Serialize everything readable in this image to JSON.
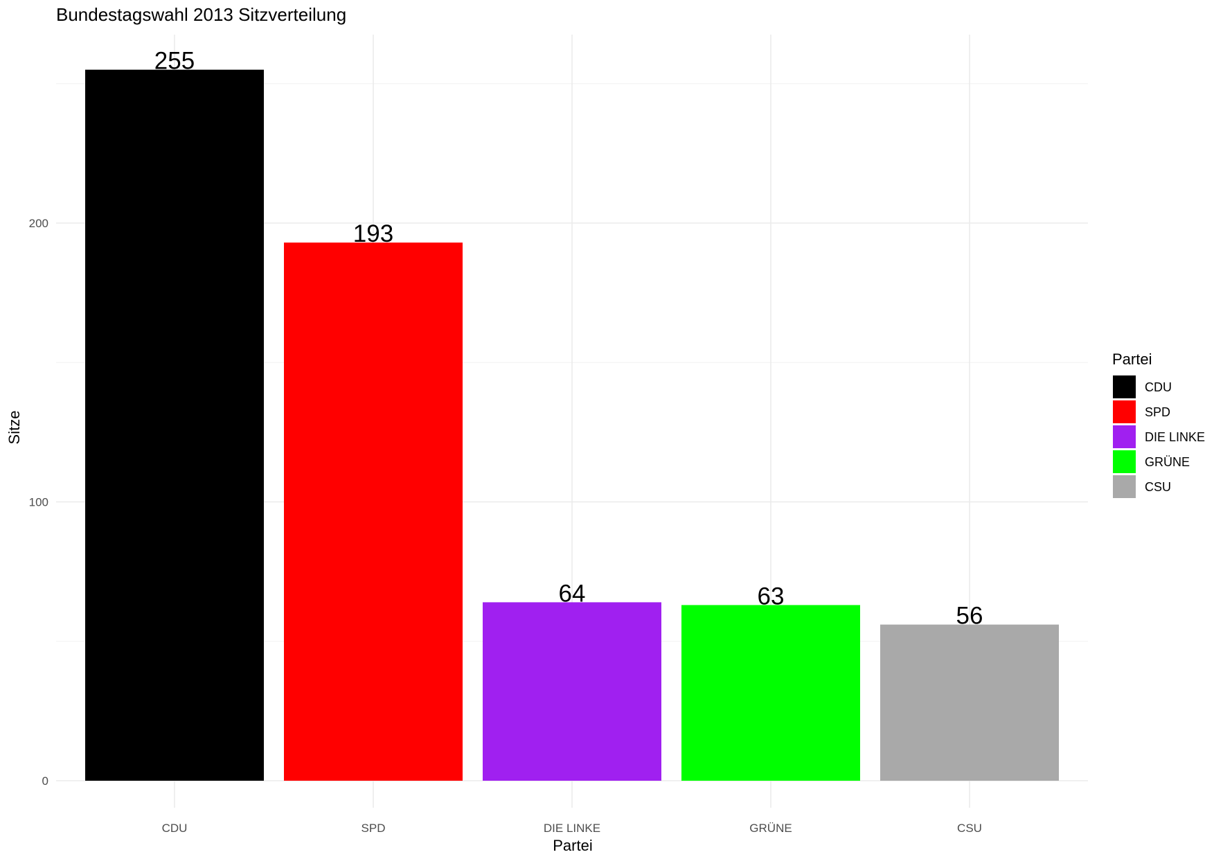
{
  "chart_data": {
    "type": "bar",
    "title": "Bundestagswahl 2013 Sitzverteilung",
    "xlabel": "Partei",
    "ylabel": "Sitze",
    "categories": [
      "CDU",
      "SPD",
      "DIE LINKE",
      "GRÜNE",
      "CSU"
    ],
    "values": [
      255,
      193,
      64,
      63,
      56
    ],
    "data_labels": [
      "255",
      "193",
      "64",
      "63",
      "56"
    ],
    "colors": [
      "#000000",
      "#ff0000",
      "#a020f0",
      "#00ff00",
      "#a9a9a9"
    ],
    "ylim": [
      0,
      255
    ],
    "yticks": [
      0,
      100,
      200
    ],
    "ytick_labels": [
      "0",
      "100",
      "200"
    ],
    "grid": true,
    "legend": {
      "title": "Partei",
      "position": "right",
      "entries": [
        "CDU",
        "SPD",
        "DIE LINKE",
        "GRÜNE",
        "CSU"
      ]
    }
  }
}
